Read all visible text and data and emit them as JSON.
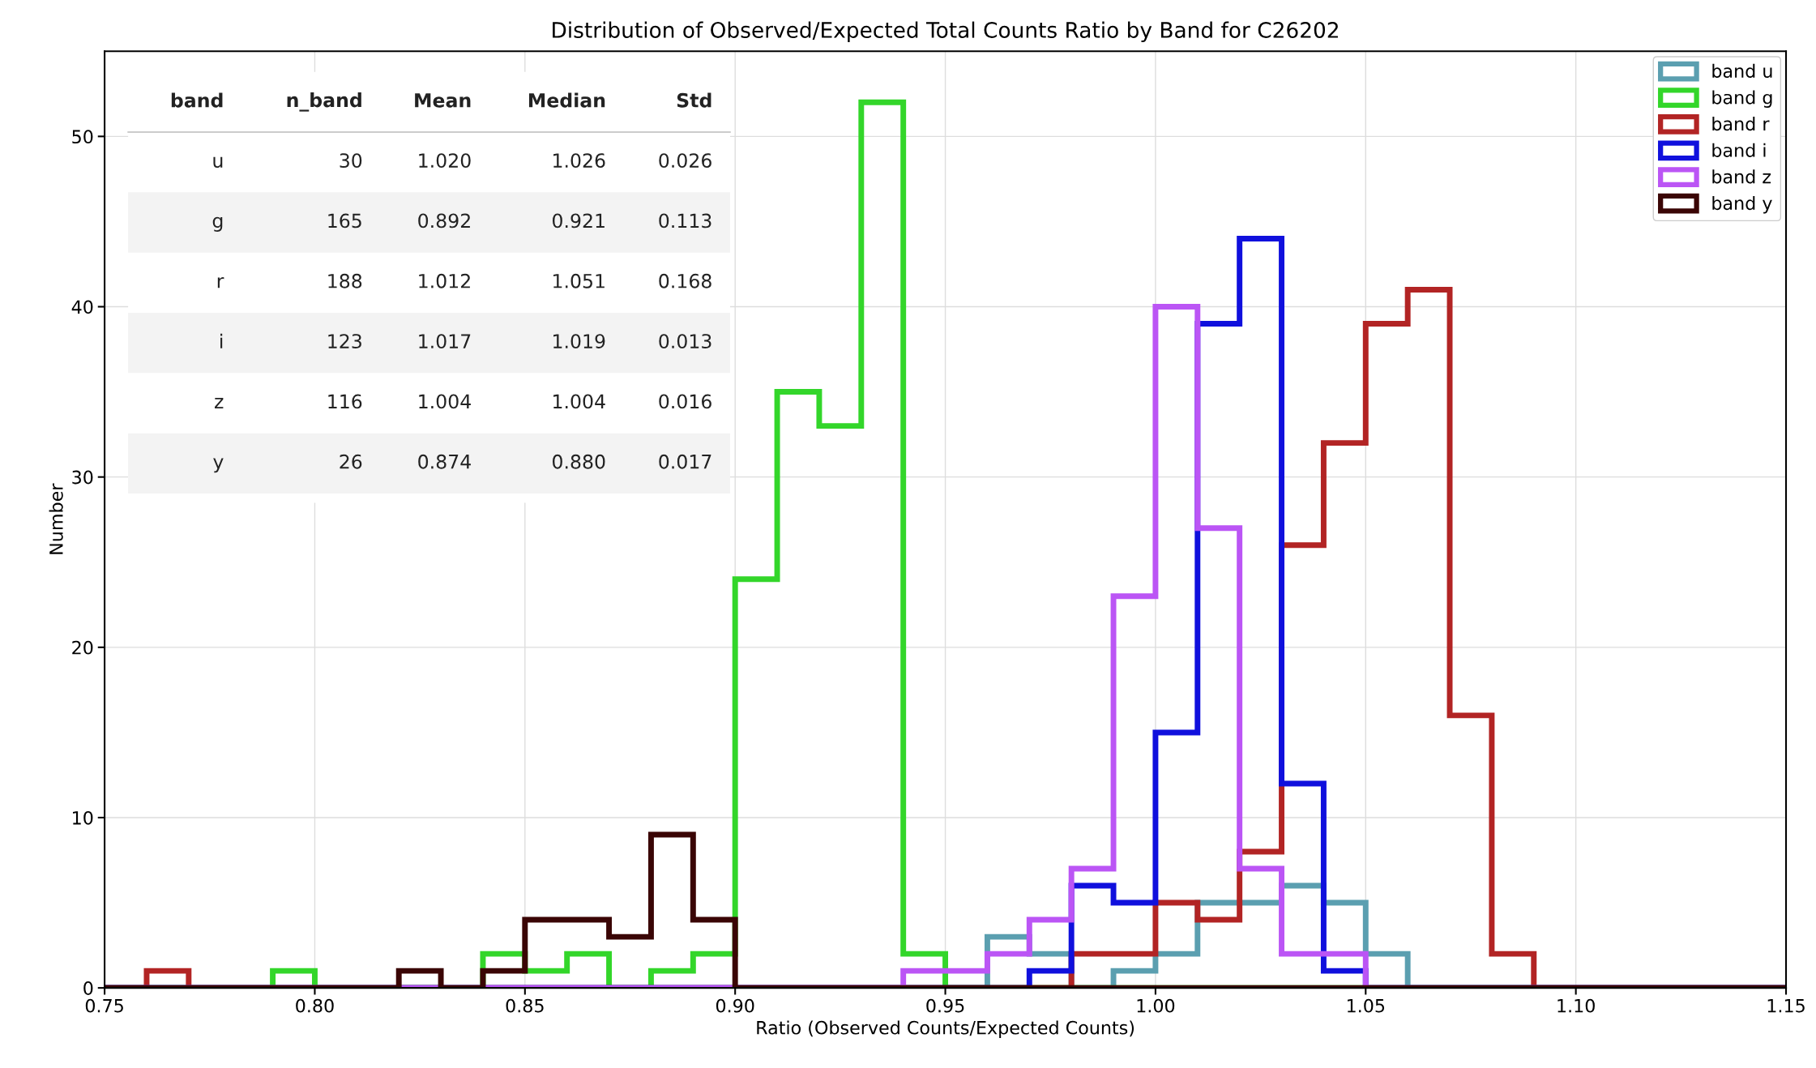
{
  "chart_data": {
    "type": "histogram",
    "title": "Distribution of Observed/Expected Total Counts Ratio by Band for C26202",
    "xlabel": "Ratio (Observed Counts/Expected Counts)",
    "ylabel": "Number",
    "bins": [
      0.75,
      0.76,
      0.77,
      0.78,
      0.79,
      0.8,
      0.81,
      0.82,
      0.83,
      0.84,
      0.85,
      0.86,
      0.87,
      0.88,
      0.89,
      0.9,
      0.91,
      0.92,
      0.93,
      0.94,
      0.95,
      0.96,
      0.97,
      0.98,
      0.99,
      1.0,
      1.01,
      1.02,
      1.03,
      1.04,
      1.05,
      1.06,
      1.07,
      1.08,
      1.09,
      1.1,
      1.11,
      1.12,
      1.13,
      1.14,
      1.15
    ],
    "series": [
      {
        "name": "band u",
        "color": "#5b9fb0",
        "values": [
          0,
          0,
          0,
          0,
          0,
          0,
          0,
          0,
          0,
          0,
          0,
          0,
          0,
          0,
          0,
          0,
          0,
          0,
          0,
          0,
          0,
          3,
          2,
          0,
          1,
          2,
          5,
          5,
          6,
          5,
          2,
          0,
          0,
          0,
          0,
          0,
          0,
          0,
          0,
          0
        ]
      },
      {
        "name": "band g",
        "color": "#33d62a",
        "values": [
          0,
          0,
          0,
          0,
          1,
          0,
          0,
          0,
          0,
          2,
          1,
          2,
          0,
          1,
          2,
          24,
          35,
          33,
          52,
          2,
          0,
          0,
          0,
          0,
          0,
          0,
          0,
          0,
          0,
          0,
          0,
          0,
          0,
          0,
          0,
          0,
          0,
          0,
          0,
          0
        ]
      },
      {
        "name": "band r",
        "color": "#b22424",
        "values": [
          0,
          1,
          0,
          0,
          0,
          0,
          0,
          0,
          0,
          0,
          0,
          0,
          0,
          0,
          0,
          0,
          0,
          0,
          0,
          0,
          0,
          0,
          0,
          2,
          2,
          5,
          4,
          8,
          26,
          32,
          39,
          41,
          16,
          2,
          0,
          0,
          0,
          0,
          0,
          0
        ]
      },
      {
        "name": "band i",
        "color": "#1010dd",
        "values": [
          0,
          0,
          0,
          0,
          0,
          0,
          0,
          0,
          0,
          0,
          0,
          0,
          0,
          0,
          0,
          0,
          0,
          0,
          0,
          0,
          0,
          0,
          1,
          6,
          5,
          15,
          39,
          44,
          12,
          1,
          0,
          0,
          0,
          0,
          0,
          0,
          0,
          0,
          0,
          0
        ]
      },
      {
        "name": "band z",
        "color": "#bb55f5",
        "values": [
          0,
          0,
          0,
          0,
          0,
          0,
          0,
          0,
          0,
          0,
          0,
          0,
          0,
          0,
          0,
          0,
          0,
          0,
          0,
          1,
          1,
          2,
          4,
          7,
          23,
          40,
          27,
          7,
          2,
          2,
          0,
          0,
          0,
          0,
          0,
          0,
          0,
          0,
          0,
          0
        ]
      },
      {
        "name": "band y",
        "color": "#3a0505",
        "values": [
          0,
          0,
          0,
          0,
          0,
          0,
          0,
          1,
          0,
          1,
          4,
          4,
          3,
          9,
          4,
          0,
          0,
          0,
          0,
          0,
          0,
          0,
          0,
          0,
          0,
          0,
          0,
          0,
          0,
          0,
          0,
          0,
          0,
          0,
          0,
          0,
          0,
          0,
          0,
          0
        ]
      }
    ],
    "xlim": [
      0.75,
      1.15
    ],
    "xticks": [
      {
        "value": 0.75,
        "label": "0.75"
      },
      {
        "value": 0.8,
        "label": "0.80"
      },
      {
        "value": 0.85,
        "label": "0.85"
      },
      {
        "value": 0.9,
        "label": "0.90"
      },
      {
        "value": 0.95,
        "label": "0.95"
      },
      {
        "value": 1.0,
        "label": "1.00"
      },
      {
        "value": 1.05,
        "label": "1.05"
      },
      {
        "value": 1.1,
        "label": "1.10"
      },
      {
        "value": 1.15,
        "label": "1.15"
      }
    ],
    "ylim": [
      0,
      55
    ],
    "yticks": [
      0,
      10,
      20,
      30,
      40,
      50
    ],
    "grid": true,
    "legend": "top right",
    "annotations": [
      "band",
      "n_band",
      "Mean",
      "Median",
      "Std",
      "u",
      "30",
      "1.020",
      "1.026",
      "0.026",
      "g",
      "165",
      "0.892",
      "0.921",
      "0.113",
      "r",
      "188",
      "1.012",
      "1.051",
      "0.168",
      "i",
      "123",
      "1.017",
      "1.019",
      "0.013",
      "z",
      "116",
      "1.004",
      "1.004",
      "0.016",
      "y",
      "26",
      "0.874",
      "0.880",
      "0.017"
    ]
  }
}
